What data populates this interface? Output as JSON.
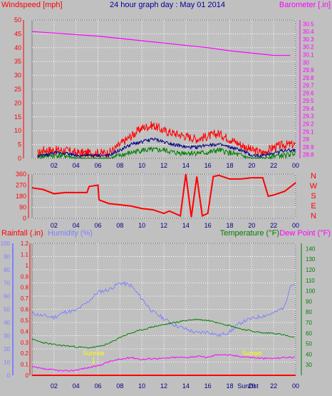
{
  "title": "24 hour graph day : May 01 2014",
  "colors": {
    "background": "#c0c0c0",
    "plot_bg": "#c0c0c0",
    "grid": "#ffffff",
    "windspeed": "#ff0000",
    "wind_avg": "#000080",
    "wind_green": "#008000",
    "barometer": "#ff00ff",
    "direction": "#ff0000",
    "rainfall": "#ff0000",
    "humidity": "#8080ff",
    "temperature": "#008000",
    "dewpoint": "#ff00ff",
    "sun_labels": "#ffff00",
    "title": "#0000a0"
  },
  "chart_data": [
    {
      "id": "wind",
      "type": "line",
      "left_label": "Windspeed [mph]",
      "right_label": "Barometer [.in]",
      "x_ticks": [
        "02",
        "04",
        "06",
        "08",
        "10",
        "12",
        "14",
        "16",
        "18",
        "20",
        "22",
        "00"
      ],
      "x_range": [
        0,
        24
      ],
      "left_ticks": [
        0,
        5,
        10,
        15,
        20,
        25,
        30,
        35,
        40,
        45,
        50
      ],
      "left_range": [
        0,
        50
      ],
      "right_ticks": [
        "28.8",
        "28.9",
        "29",
        "29.1",
        "29.2",
        "29.3",
        "29.4",
        "29.5",
        "29.6",
        "29.7",
        "29.8",
        "29.9",
        "30",
        "30.1",
        "30.2",
        "30.3",
        "30.4",
        "30.5"
      ],
      "right_range": [
        28.75,
        30.55
      ],
      "barometer": {
        "x": [
          0,
          2,
          4,
          6,
          8,
          10,
          12,
          14,
          16,
          18,
          20,
          22,
          23.5
        ],
        "y": [
          30.4,
          30.38,
          30.36,
          30.34,
          30.31,
          30.28,
          30.25,
          30.22,
          30.19,
          30.15,
          30.12,
          30.09,
          30.09
        ]
      },
      "wind_envelope": {
        "x": [
          0,
          1,
          2,
          3,
          4,
          5,
          6,
          7,
          8,
          9,
          10,
          11,
          12,
          13,
          14,
          15,
          16,
          17,
          18,
          19,
          20,
          21,
          22,
          23,
          24
        ],
        "gust": [
          0,
          3,
          3,
          3,
          2,
          2,
          2,
          2,
          5,
          8,
          11,
          12,
          10,
          9,
          8,
          7,
          8,
          9,
          7,
          5,
          3,
          2,
          4,
          5,
          5
        ],
        "avg": [
          0,
          1,
          2,
          2,
          1,
          1,
          1,
          1,
          3,
          5,
          6,
          7,
          6,
          5,
          4,
          4,
          5,
          5,
          4,
          3,
          1,
          1,
          2,
          3,
          3
        ],
        "low": [
          0,
          1,
          1,
          1,
          0,
          0,
          0,
          0,
          1,
          2,
          3,
          3,
          3,
          2,
          2,
          2,
          2,
          3,
          2,
          1,
          0,
          0,
          1,
          1,
          2
        ]
      }
    },
    {
      "id": "direction",
      "type": "line",
      "x_ticks": [
        "02",
        "04",
        "06",
        "08",
        "10",
        "12",
        "14",
        "16",
        "18",
        "20",
        "22",
        "00"
      ],
      "x_range": [
        0,
        24
      ],
      "left_ticks": [
        0,
        90,
        180,
        270,
        360
      ],
      "left_range": [
        0,
        360
      ],
      "compass": [
        "N",
        "W",
        "S",
        "E",
        "N"
      ],
      "series": {
        "x": [
          0,
          0.2,
          1,
          2,
          3,
          4,
          4.5,
          5,
          5.2,
          6,
          6.1,
          7,
          8,
          9,
          10,
          11,
          12,
          12.5,
          13,
          13.5,
          14,
          14.5,
          15,
          15.5,
          16,
          16.5,
          17,
          18,
          19,
          20,
          21,
          21.5,
          22,
          23,
          24
        ],
        "y": [
          250,
          245,
          235,
          200,
          210,
          210,
          210,
          210,
          260,
          270,
          150,
          120,
          110,
          100,
          80,
          70,
          40,
          60,
          40,
          20,
          360,
          10,
          340,
          20,
          40,
          340,
          350,
          320,
          320,
          330,
          330,
          180,
          190,
          220,
          290
        ]
      }
    },
    {
      "id": "climate",
      "type": "line",
      "left_label_1": "Rainfall (.in)",
      "left_label_2": "Humidity (%)",
      "right_label_1": "Temperature (°F)",
      "right_label_2": "Dew Point (°F)",
      "x_ticks": [
        "02",
        "04",
        "06",
        "08",
        "10",
        "12",
        "14",
        "16",
        "18",
        "20",
        "22",
        "00"
      ],
      "x_range": [
        0,
        24
      ],
      "humidity_ticks": [
        0,
        10,
        20,
        30,
        40,
        50,
        60,
        70,
        80,
        90,
        100
      ],
      "humidity_range": [
        0,
        100
      ],
      "rain_ticks": [
        "0",
        "0.1",
        "0.2",
        "0.3",
        "0.4",
        "0.5",
        "0.6",
        "0.7",
        "0.8",
        "0.9",
        "1",
        "1.1",
        "1.2"
      ],
      "rain_range": [
        0,
        1.2
      ],
      "temp_ticks": [
        30,
        40,
        50,
        60,
        70,
        80,
        90,
        100,
        110,
        120,
        130,
        140
      ],
      "temp_range": [
        20,
        145
      ],
      "humidity": {
        "x": [
          0,
          1,
          2,
          3,
          4,
          5,
          6,
          7,
          8,
          9,
          10,
          11,
          12,
          13,
          14,
          15,
          16,
          17,
          18,
          19,
          20,
          21,
          22,
          23,
          23.5,
          24
        ],
        "y": [
          47,
          45,
          44,
          48,
          49,
          55,
          63,
          65,
          70,
          68,
          58,
          48,
          43,
          38,
          35,
          32,
          33,
          30,
          33,
          40,
          43,
          45,
          47,
          52,
          68,
          70
        ]
      },
      "temperature": {
        "x": [
          0,
          1,
          2,
          3,
          4,
          5,
          6,
          7,
          8,
          9,
          10,
          11,
          12,
          13,
          14,
          15,
          16,
          17,
          18,
          19,
          20,
          21,
          22,
          23,
          24
        ],
        "y": [
          54,
          51,
          49,
          48,
          47,
          46,
          47,
          50,
          56,
          60,
          63,
          66,
          68,
          70,
          72,
          73,
          72,
          70,
          67,
          64,
          62,
          60,
          60,
          58,
          55
        ]
      },
      "dewpoint": {
        "x": [
          0,
          1,
          2,
          3,
          4,
          5,
          6,
          7,
          8,
          9,
          10,
          11,
          12,
          13,
          14,
          15,
          16,
          17,
          18,
          19,
          20,
          21,
          22,
          23,
          24
        ],
        "y": [
          28,
          26,
          25,
          24,
          25,
          27,
          29,
          33,
          35,
          37,
          35,
          36,
          36,
          37,
          37,
          38,
          37,
          40,
          39,
          38,
          37,
          36,
          36,
          37,
          37
        ]
      },
      "rainfall": {
        "x": [
          0,
          24
        ],
        "y": [
          0,
          0
        ]
      },
      "sunrise_label": "Sunrise",
      "sunset_label": "Sunset",
      "sunrise_at": 5.6,
      "sunset_at": 20,
      "footer_label": "SunDst"
    }
  ]
}
